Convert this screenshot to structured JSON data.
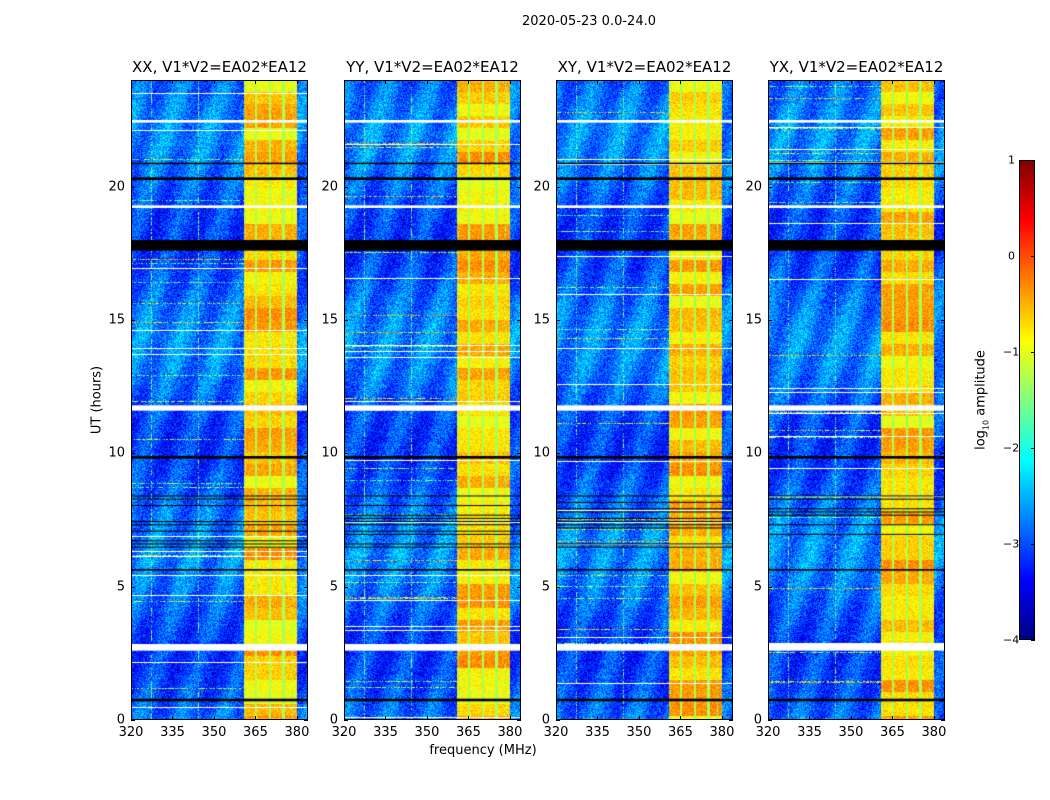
{
  "figure_title": "2020-05-23 0.0-24.0",
  "chart_data": [
    {
      "type": "heatmap",
      "title": "XX, V1*V2=EA02*EA12",
      "xlabel": "frequency (MHz)",
      "ylabel": "UT (hours)",
      "xlim": [
        320,
        384
      ],
      "ylim": [
        0,
        24
      ],
      "seed": 11
    },
    {
      "type": "heatmap",
      "title": "YY, V1*V2=EA02*EA12",
      "xlabel": "frequency (MHz)",
      "ylabel": "UT (hours)",
      "xlim": [
        320,
        384
      ],
      "ylim": [
        0,
        24
      ],
      "seed": 23
    },
    {
      "type": "heatmap",
      "title": "XY, V1*V2=EA02*EA12",
      "xlabel": "frequency (MHz)",
      "ylabel": "UT (hours)",
      "xlim": [
        320,
        384
      ],
      "ylim": [
        0,
        24
      ],
      "seed": 37
    },
    {
      "type": "heatmap",
      "title": "YX, V1*V2=EA02*EA12",
      "xlabel": "frequency (MHz)",
      "ylabel": "UT (hours)",
      "xlim": [
        320,
        384
      ],
      "ylim": [
        0,
        24
      ],
      "seed": 41
    }
  ],
  "xticks": [
    "320",
    "335",
    "350",
    "365",
    "380"
  ],
  "xtick_values": [
    320,
    335,
    350,
    365,
    380
  ],
  "yticks": [
    "0",
    "5",
    "10",
    "15",
    "20"
  ],
  "ytick_values": [
    0,
    5,
    10,
    15,
    20
  ],
  "xlabel": "frequency (MHz)",
  "ylabel": "UT (hours)",
  "signal_band_mhz": [
    360.5,
    380
  ],
  "band_gaps_mhz": [
    365,
    370,
    375
  ],
  "flagged_white_hours": [
    [
      2.6,
      2.85
    ],
    [
      11.6,
      11.8
    ],
    [
      19.2,
      19.3
    ],
    [
      22.4,
      22.5
    ]
  ],
  "flagged_black_hours": [
    [
      0.7,
      0.8
    ],
    [
      5.6,
      5.66
    ],
    [
      6.5,
      8.5
    ],
    [
      9.8,
      9.9
    ],
    [
      20.25,
      20.35
    ],
    [
      20.85,
      20.9
    ],
    [
      17.6,
      18.0
    ]
  ],
  "colorbar": {
    "label_prefix": "log",
    "label_sub": "10",
    "label_suffix": " amplitude",
    "range": [
      -4,
      1
    ],
    "ticks": [
      "1",
      "0",
      "−1",
      "−2",
      "−3",
      "−4"
    ],
    "tick_values": [
      1,
      0,
      -1,
      -2,
      -3,
      -4
    ],
    "colormap": "jet"
  }
}
